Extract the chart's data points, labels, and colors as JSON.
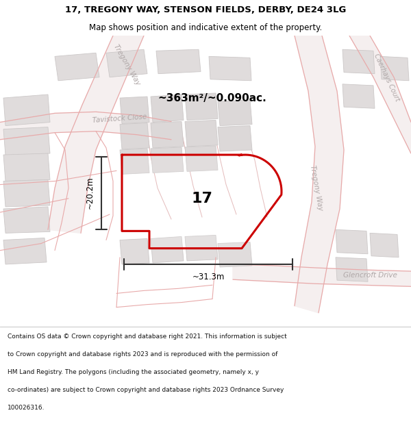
{
  "title_line1": "17, TREGONY WAY, STENSON FIELDS, DERBY, DE24 3LG",
  "title_line2": "Map shows position and indicative extent of the property.",
  "footer_lines": [
    "Contains OS data © Crown copyright and database right 2021. This information is subject",
    "to Crown copyright and database rights 2023 and is reproduced with the permission of",
    "HM Land Registry. The polygons (including the associated geometry, namely x, y",
    "co-ordinates) are subject to Crown copyright and database rights 2023 Ordnance Survey",
    "100026316."
  ],
  "area_text": "~363m²/~0.090ac.",
  "number_label": "17",
  "width_label": "~31.3m",
  "height_label": "~20.2m",
  "map_bg": "#f0eeee",
  "road_line_color": "#e8aaaa",
  "road_fill_color": "#f5efef",
  "block_fc": "#e0dcdc",
  "block_ec": "#ccc8c8",
  "property_color": "#cc0000",
  "property_lw": 2.2,
  "dim_color": "#333333",
  "dim_lw": 1.5,
  "street_color": "#b0a8a8",
  "title_color": "#000000",
  "figsize": [
    6.0,
    6.25
  ],
  "dpi": 100,
  "title_fs1": 9.5,
  "title_fs2": 8.5,
  "area_fs": 11,
  "number_fs": 16,
  "dim_fs": 8.5,
  "street_fs": 7.5,
  "footer_fs": 6.5
}
